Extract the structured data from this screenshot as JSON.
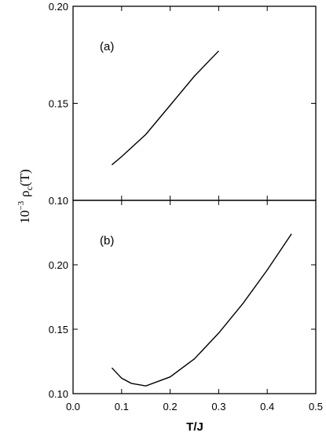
{
  "chart_data": [
    {
      "panel_label": "(a)",
      "type": "line",
      "xlim": [
        0.0,
        0.5
      ],
      "ylim": [
        0.1,
        0.2
      ],
      "yticks": [
        0.1,
        0.15,
        0.2
      ],
      "ytick_labels": [
        "0.10",
        "0.15",
        "0.20"
      ],
      "series": [
        {
          "x": [
            0.08,
            0.1,
            0.15,
            0.2,
            0.25,
            0.3
          ],
          "values": [
            0.1183,
            0.1225,
            0.134,
            0.149,
            0.164,
            0.177
          ]
        }
      ]
    },
    {
      "panel_label": "(b)",
      "type": "line",
      "xlim": [
        0.0,
        0.5
      ],
      "ylim": [
        0.1,
        0.25
      ],
      "yticks": [
        0.1,
        0.15,
        0.2
      ],
      "ytick_labels": [
        "0.10",
        "0.15",
        "0.20"
      ],
      "series": [
        {
          "x": [
            0.08,
            0.1,
            0.12,
            0.15,
            0.2,
            0.25,
            0.3,
            0.35,
            0.4,
            0.45
          ],
          "values": [
            0.12,
            0.112,
            0.108,
            0.106,
            0.113,
            0.127,
            0.147,
            0.17,
            0.196,
            0.224
          ]
        }
      ]
    }
  ],
  "x_axis": {
    "ticks": [
      0.0,
      0.1,
      0.2,
      0.3,
      0.4,
      0.5
    ],
    "tick_labels": [
      "0.0",
      "0.1",
      "0.2",
      "0.3",
      "0.4",
      "0.5"
    ],
    "label": "T/J"
  },
  "y_axis_label": {
    "prefix": "10",
    "exponent": "−3",
    "symbol": "ρ",
    "subscript": "c",
    "argument": "(T)"
  }
}
